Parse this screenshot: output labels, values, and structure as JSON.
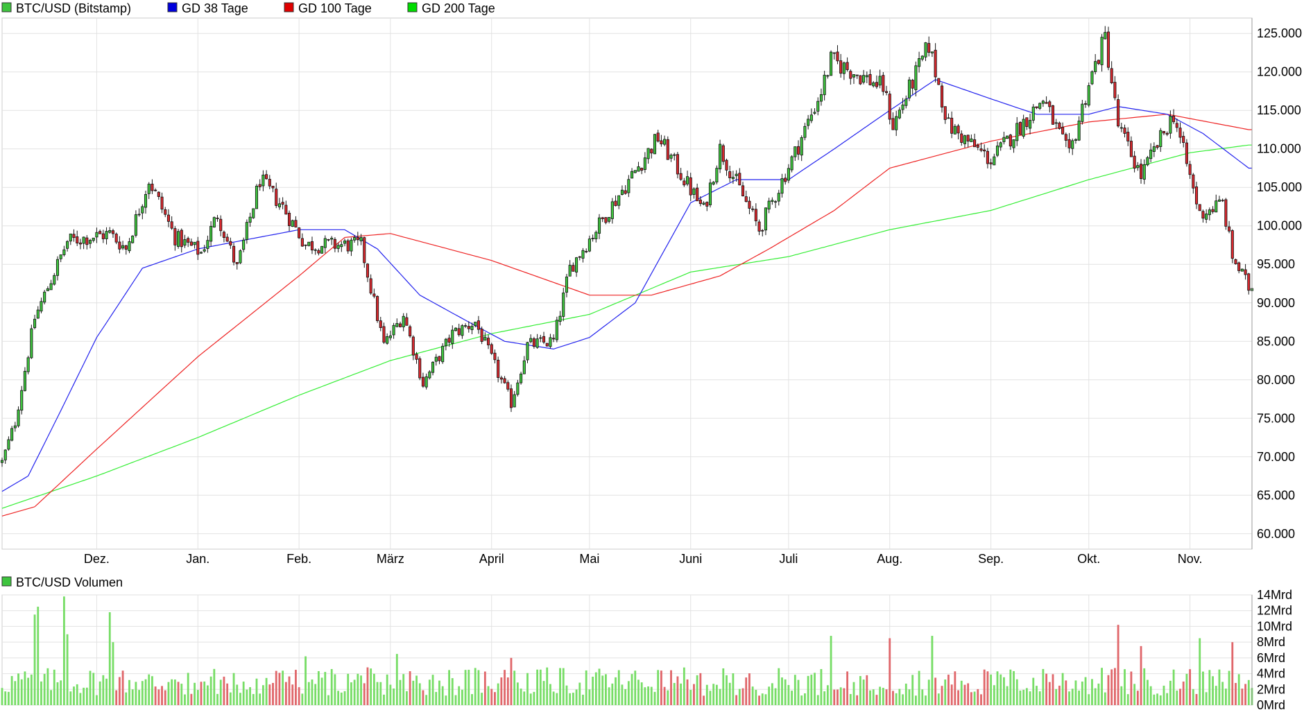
{
  "price_legend": [
    {
      "label": "BTC/USD (Bitstamp)",
      "color": "#3ec43e"
    },
    {
      "label": "GD 38 Tage",
      "color": "#0000dd"
    },
    {
      "label": "GD 100 Tage",
      "color": "#e00000"
    },
    {
      "label": "GD 200 Tage",
      "color": "#00dd00"
    }
  ],
  "volume_legend": {
    "label": "BTC/USD Volumen",
    "color": "#3ec43e"
  },
  "colors": {
    "up": "#3ec43e",
    "down": "#d8282e",
    "grid": "#e2e2e2",
    "volume_up": "#77dd66",
    "volume_down": "#e0666a"
  },
  "chart_data": [
    {
      "type": "candlestick",
      "title": "",
      "series": [
        {
          "name": "BTC/USD (Bitstamp)",
          "kind": "ohlc"
        },
        {
          "name": "GD 38 Tage",
          "kind": "line"
        },
        {
          "name": "GD 100 Tage",
          "kind": "line"
        },
        {
          "name": "GD 200 Tage",
          "kind": "line"
        }
      ],
      "x_labels": [
        {
          "label": "Dez.",
          "date": "2024-12-01"
        },
        {
          "label": "Jan.",
          "date": "2025-01-01"
        },
        {
          "label": "Feb.",
          "date": "2025-02-01"
        },
        {
          "label": "März",
          "date": "2025-03-01"
        },
        {
          "label": "April",
          "date": "2025-04-01"
        },
        {
          "label": "Mai",
          "date": "2025-05-01"
        },
        {
          "label": "Juni",
          "date": "2025-06-01"
        },
        {
          "label": "Juli",
          "date": "2025-07-01"
        },
        {
          "label": "Aug.",
          "date": "2025-08-01"
        },
        {
          "label": "Sep.",
          "date": "2025-09-01"
        },
        {
          "label": "Okt.",
          "date": "2025-10-01"
        },
        {
          "label": "Nov.",
          "date": "2025-11-01"
        }
      ],
      "y_ticks": [
        60000,
        65000,
        70000,
        75000,
        80000,
        85000,
        90000,
        95000,
        100000,
        105000,
        110000,
        115000,
        120000,
        125000
      ],
      "y_tick_labels": [
        "60.000",
        "65.000",
        "70.000",
        "75.000",
        "80.000",
        "85.000",
        "90.000",
        "95.000",
        "100.000",
        "105.000",
        "110.000",
        "115.000",
        "120.000",
        "125.000"
      ],
      "ylim": [
        58000,
        127000
      ],
      "date_range": [
        "2024-11-02",
        "2025-11-20"
      ],
      "grid": true,
      "legend_position": "top-left",
      "close_anchors": [
        [
          "2024-11-02",
          69300
        ],
        [
          "2024-11-06",
          74500
        ],
        [
          "2024-11-12",
          88000
        ],
        [
          "2024-11-22",
          98000
        ],
        [
          "2024-12-05",
          99000
        ],
        [
          "2024-12-10",
          97000
        ],
        [
          "2024-12-17",
          106000
        ],
        [
          "2024-12-25",
          98500
        ],
        [
          "2025-01-02",
          96500
        ],
        [
          "2025-01-07",
          101500
        ],
        [
          "2025-01-13",
          94500
        ],
        [
          "2025-01-20",
          106000
        ],
        [
          "2025-01-27",
          102500
        ],
        [
          "2025-02-03",
          97500
        ],
        [
          "2025-02-20",
          97500
        ],
        [
          "2025-02-27",
          84500
        ],
        [
          "2025-03-05",
          88500
        ],
        [
          "2025-03-11",
          79500
        ],
        [
          "2025-03-20",
          86000
        ],
        [
          "2025-03-27",
          87500
        ],
        [
          "2025-04-07",
          77000
        ],
        [
          "2025-04-12",
          84500
        ],
        [
          "2025-04-20",
          85000
        ],
        [
          "2025-04-25",
          94500
        ],
        [
          "2025-05-10",
          104000
        ],
        [
          "2025-05-22",
          111500
        ],
        [
          "2025-06-05",
          102000
        ],
        [
          "2025-06-10",
          110000
        ],
        [
          "2025-06-22",
          99500
        ],
        [
          "2025-07-03",
          109500
        ],
        [
          "2025-07-11",
          117500
        ],
        [
          "2025-07-14",
          121500
        ],
        [
          "2025-07-30",
          118000
        ],
        [
          "2025-08-02",
          113000
        ],
        [
          "2025-08-13",
          123500
        ],
        [
          "2025-08-19",
          113000
        ],
        [
          "2025-09-01",
          108500
        ],
        [
          "2025-09-17",
          116500
        ],
        [
          "2025-09-25",
          109000
        ],
        [
          "2025-10-01",
          118500
        ],
        [
          "2025-10-06",
          124500
        ],
        [
          "2025-10-10",
          113000
        ],
        [
          "2025-10-17",
          106500
        ],
        [
          "2025-10-27",
          114500
        ],
        [
          "2025-11-04",
          101500
        ],
        [
          "2025-11-11",
          103000
        ],
        [
          "2025-11-14",
          96000
        ],
        [
          "2025-11-19",
          92000
        ]
      ],
      "ma38_anchors": [
        [
          "2024-11-02",
          65500
        ],
        [
          "2024-11-10",
          67500
        ],
        [
          "2024-11-20",
          76000
        ],
        [
          "2024-12-01",
          85500
        ],
        [
          "2024-12-15",
          94500
        ],
        [
          "2025-01-01",
          97000
        ],
        [
          "2025-02-01",
          99500
        ],
        [
          "2025-02-15",
          99500
        ],
        [
          "2025-02-25",
          97000
        ],
        [
          "2025-03-10",
          91000
        ],
        [
          "2025-03-25",
          87500
        ],
        [
          "2025-04-05",
          85000
        ],
        [
          "2025-04-20",
          84000
        ],
        [
          "2025-05-01",
          85500
        ],
        [
          "2025-05-15",
          90000
        ],
        [
          "2025-06-01",
          103000
        ],
        [
          "2025-06-15",
          106000
        ],
        [
          "2025-07-01",
          106000
        ],
        [
          "2025-07-15",
          110000
        ],
        [
          "2025-08-01",
          115000
        ],
        [
          "2025-08-15",
          119000
        ],
        [
          "2025-09-01",
          116500
        ],
        [
          "2025-09-15",
          114500
        ],
        [
          "2025-10-01",
          114500
        ],
        [
          "2025-10-10",
          115500
        ],
        [
          "2025-10-25",
          114500
        ],
        [
          "2025-11-05",
          112000
        ],
        [
          "2025-11-19",
          107500
        ]
      ],
      "ma100_anchors": [
        [
          "2024-11-02",
          62300
        ],
        [
          "2024-11-12",
          63500
        ],
        [
          "2024-12-01",
          71000
        ],
        [
          "2025-01-01",
          83000
        ],
        [
          "2025-02-01",
          93500
        ],
        [
          "2025-02-15",
          98500
        ],
        [
          "2025-03-01",
          99000
        ],
        [
          "2025-04-01",
          95500
        ],
        [
          "2025-05-01",
          91000
        ],
        [
          "2025-05-20",
          91000
        ],
        [
          "2025-06-10",
          93500
        ],
        [
          "2025-06-25",
          97000
        ],
        [
          "2025-07-15",
          102000
        ],
        [
          "2025-08-01",
          107500
        ],
        [
          "2025-09-01",
          111000
        ],
        [
          "2025-10-01",
          113500
        ],
        [
          "2025-10-25",
          114500
        ],
        [
          "2025-11-19",
          112500
        ]
      ],
      "ma200_anchors": [
        [
          "2024-11-02",
          63300
        ],
        [
          "2024-12-01",
          67500
        ],
        [
          "2025-01-01",
          72500
        ],
        [
          "2025-02-01",
          78000
        ],
        [
          "2025-03-01",
          82500
        ],
        [
          "2025-04-01",
          86000
        ],
        [
          "2025-05-01",
          88500
        ],
        [
          "2025-06-01",
          94000
        ],
        [
          "2025-07-01",
          96000
        ],
        [
          "2025-08-01",
          99500
        ],
        [
          "2025-09-01",
          102000
        ],
        [
          "2025-10-01",
          106000
        ],
        [
          "2025-11-01",
          109500
        ],
        [
          "2025-11-19",
          110500
        ]
      ]
    },
    {
      "type": "bar",
      "title": "",
      "series": [
        {
          "name": "BTC/USD Volumen",
          "kind": "volume"
        }
      ],
      "unit": "Mrd",
      "y_ticks": [
        0,
        2,
        4,
        6,
        8,
        10,
        12,
        14
      ],
      "y_tick_labels": [
        "0Mrd",
        "2Mrd",
        "4Mrd",
        "6Mrd",
        "8Mrd",
        "10Mrd",
        "12Mrd",
        "14Mrd"
      ],
      "ylim": [
        0,
        14
      ],
      "grid": true,
      "peaks": [
        [
          "2024-11-12",
          11.5
        ],
        [
          "2024-11-13",
          12.5
        ],
        [
          "2024-11-21",
          13.8
        ],
        [
          "2024-11-22",
          9.0
        ],
        [
          "2024-12-05",
          11.8
        ],
        [
          "2024-12-06",
          8.0
        ],
        [
          "2025-02-03",
          6.2
        ],
        [
          "2025-03-03",
          6.5
        ],
        [
          "2025-04-07",
          6.0
        ],
        [
          "2025-07-14",
          8.8
        ],
        [
          "2025-08-01",
          8.5
        ],
        [
          "2025-08-14",
          8.8
        ],
        [
          "2025-10-10",
          10.2
        ],
        [
          "2025-10-17",
          7.5
        ],
        [
          "2025-11-04",
          8.5
        ],
        [
          "2025-11-14",
          8.0
        ]
      ]
    }
  ]
}
